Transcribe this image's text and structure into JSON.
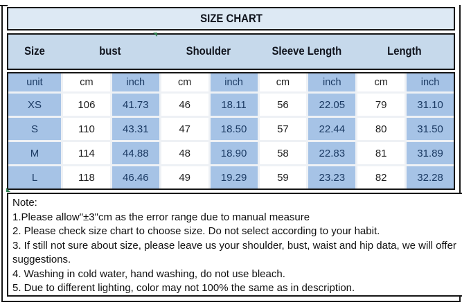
{
  "title": "SIZE CHART",
  "header": {
    "size_label": "Size",
    "bust_label": "bust",
    "shoulder_label": "Shoulder",
    "sleeve_label": "Sleeve Length",
    "length_label": "Length"
  },
  "table": {
    "unit_label": "unit",
    "unit_row": [
      "cm",
      "inch",
      "cm",
      "inch",
      "cm",
      "inch",
      "cm",
      "inch"
    ],
    "rows": [
      {
        "size": "XS",
        "values": [
          "106",
          "41.73",
          "46",
          "18.11",
          "56",
          "22.05",
          "79",
          "31.10"
        ]
      },
      {
        "size": "S",
        "values": [
          "110",
          "43.31",
          "47",
          "18.50",
          "57",
          "22.44",
          "80",
          "31.50"
        ]
      },
      {
        "size": "M",
        "values": [
          "114",
          "44.88",
          "48",
          "18.90",
          "58",
          "22.83",
          "81",
          "31.89"
        ]
      },
      {
        "size": "L",
        "values": [
          "118",
          "46.46",
          "49",
          "19.29",
          "59",
          "23.23",
          "82",
          "32.28"
        ]
      }
    ]
  },
  "notes": {
    "heading": "Note:",
    "items": [
      "1.Please allow\"±3\"cm as the error range due to manual measure",
      "2. Please check size chart to choose size. Do not select according to your habit.",
      "3. If still not sure about size, please leave us your shoulder, bust, waist and hip data, we will offer suggestions.",
      "4. Washing in cold water, hand washing, do not use bleach.",
      "5. Due to different lighting, color may not 100% the same as in description."
    ]
  },
  "colors": {
    "inch_column_blue": "#a6c3e6",
    "header_band_blue": "#c6d9eb",
    "title_band_blue": "#dde9f4",
    "border_black": "#161616",
    "navy_text": "#1b3a63"
  }
}
